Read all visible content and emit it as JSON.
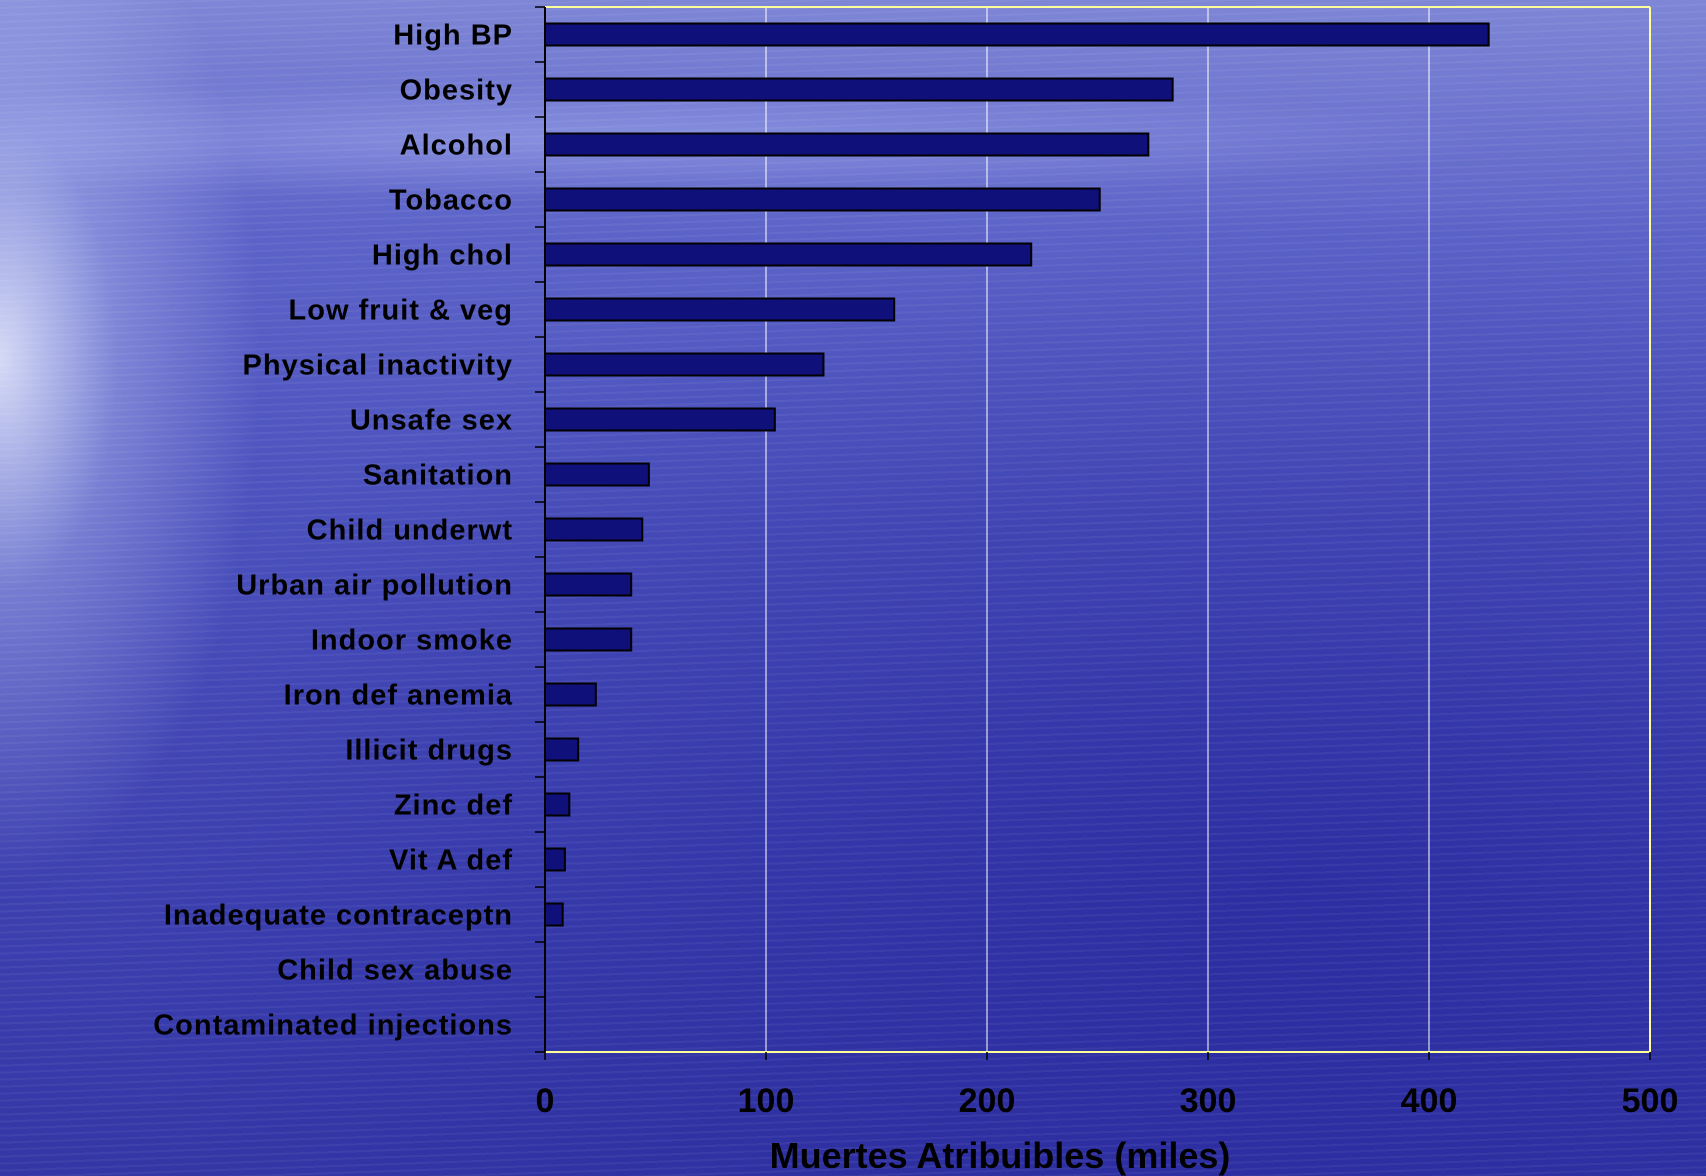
{
  "chart_data": {
    "type": "bar",
    "orientation": "horizontal",
    "categories": [
      "High BP",
      "Obesity",
      "Alcohol",
      "Tobacco",
      "High chol",
      "Low fruit & veg",
      "Physical inactivity",
      "Unsafe sex",
      "Sanitation",
      "Child underwt",
      "Urban air pollution",
      "Indoor smoke",
      "Iron def anemia",
      "Illicit drugs",
      "Zinc def",
      "Vit A def",
      "Inadequate contraceptn",
      "Child sex abuse",
      "Contaminated injections"
    ],
    "values": [
      427,
      284,
      273,
      251,
      220,
      158,
      126,
      104,
      47,
      44,
      39,
      39,
      23,
      15,
      11,
      9,
      8,
      0,
      0
    ],
    "xlabel": "Muertes Atribuibles (miles)",
    "xlim": [
      0,
      500
    ],
    "xticks": [
      "0",
      "100",
      "200",
      "300",
      "400",
      "500"
    ],
    "grid": "vertical",
    "colors": {
      "bar_fill": "#10107a",
      "bar_stroke": "#000000",
      "plot_border": "#ffff99",
      "gridline": "#ffffff",
      "text": "#000000"
    }
  }
}
